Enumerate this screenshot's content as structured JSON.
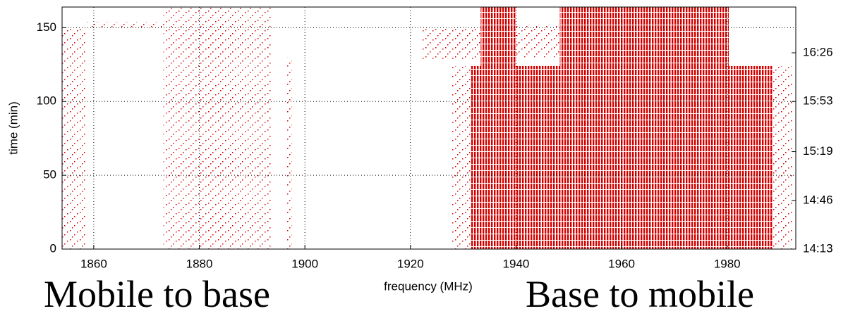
{
  "chart_data": {
    "type": "occupancy",
    "xlabel": "frequency (MHz)",
    "ylabel": "time (min)",
    "annotations": [
      "Mobile to base",
      "Base to mobile"
    ],
    "color": "#d40000",
    "grid": true,
    "xlim": [
      1854,
      1993
    ],
    "xticks": [
      1860,
      1880,
      1900,
      1920,
      1940,
      1960,
      1980
    ],
    "ylim": [
      0,
      164
    ],
    "yticks": [
      0,
      50,
      100,
      150
    ],
    "y2lim": [
      0,
      164
    ],
    "y2ticks": [
      {
        "value": 0,
        "label": "14:13"
      },
      {
        "value": 33,
        "label": "14:46"
      },
      {
        "value": 66,
        "label": "15:19"
      },
      {
        "value": 100,
        "label": "15:53"
      },
      {
        "value": 133,
        "label": "16:26"
      }
    ],
    "dense_regions": [
      [
        1931.3,
        1988.7,
        0,
        124
      ],
      [
        1933.3,
        1940,
        124,
        164
      ],
      [
        1948.3,
        1980.3,
        124,
        164
      ]
    ],
    "sparse_regions": [
      [
        1854,
        1858.5,
        0,
        150
      ],
      [
        1873.2,
        1893.6,
        0,
        164
      ],
      [
        1896.5,
        1897.5,
        0,
        130
      ],
      [
        1927.6,
        1931.3,
        0,
        124
      ],
      [
        1988.7,
        1992.3,
        0,
        124
      ],
      [
        1922,
        1933.3,
        128,
        150
      ],
      [
        1940,
        1948.3,
        130,
        152
      ],
      [
        1858.5,
        1873.2,
        150,
        154
      ]
    ]
  }
}
